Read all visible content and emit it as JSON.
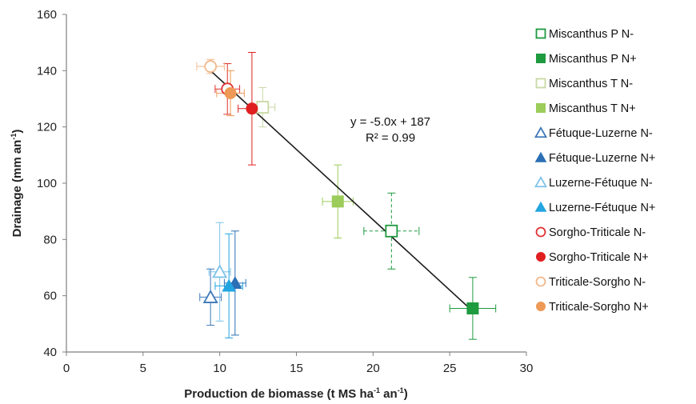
{
  "chart_data": {
    "type": "scatter",
    "xlabel_main": "Production de biomasse (t MS ha",
    "xlabel_sup1": "-1",
    "xlabel_mid": " an",
    "xlabel_sup2": "-1",
    "xlabel_end": ")",
    "ylabel_main": "Drainage (mm an",
    "ylabel_sup": "-1",
    "ylabel_end": ")",
    "xlim": [
      0,
      30
    ],
    "ylim": [
      40,
      160
    ],
    "x_ticks": [
      "0",
      "5",
      "10",
      "15",
      "20",
      "25",
      "30"
    ],
    "y_ticks": [
      "40",
      "60",
      "80",
      "100",
      "120",
      "140",
      "160"
    ],
    "grid": false,
    "legend_position": "right",
    "trendline": {
      "equation": "y = -5.0x + 187",
      "r2": "R² = 0.99",
      "x_range": [
        9.3,
        26.5
      ]
    },
    "series": [
      {
        "name": "Miscanthus P N-",
        "marker": "square",
        "fill": "none",
        "color": "#1e9a3f",
        "x": 21.2,
        "y": 83,
        "xerr": 1.8,
        "yerr": 13.5,
        "dashed": true
      },
      {
        "name": "Miscanthus P N+",
        "marker": "square",
        "fill": "solid",
        "color": "#1e9a3f",
        "x": 26.5,
        "y": 55.5,
        "xerr": 1.5,
        "yerr": 11,
        "dashed": false
      },
      {
        "name": "Miscanthus T N-",
        "marker": "square",
        "fill": "none",
        "color": "#c9d9a3",
        "x": 12.8,
        "y": 127,
        "xerr": 0.8,
        "yerr": 7,
        "dashed": false
      },
      {
        "name": "Miscanthus T N+",
        "marker": "square",
        "fill": "solid",
        "color": "#9ccc5a",
        "x": 17.7,
        "y": 93.5,
        "xerr": 1.0,
        "yerr": 13,
        "dashed": false
      },
      {
        "name": "Fétuque-Luzerne N-",
        "marker": "triangle",
        "fill": "none",
        "color": "#3d78b8",
        "x": 9.4,
        "y": 59.5,
        "xerr": 0.7,
        "yerr": 10,
        "dashed": false
      },
      {
        "name": "Fétuque-Luzerne N+",
        "marker": "triangle",
        "fill": "solid",
        "color": "#2b6fb5",
        "x": 11.0,
        "y": 64.5,
        "xerr": 0.7,
        "yerr": 18.5,
        "dashed": false
      },
      {
        "name": "Luzerne-Fétuque N-",
        "marker": "triangle",
        "fill": "none",
        "color": "#7ec3e8",
        "x": 10.0,
        "y": 68.5,
        "xerr": 0.7,
        "yerr": 17.5,
        "dashed": false
      },
      {
        "name": "Luzerne-Fétuque N+",
        "marker": "triangle",
        "fill": "solid",
        "color": "#22a5e0",
        "x": 10.6,
        "y": 63.5,
        "xerr": 0.9,
        "yerr": 18.5,
        "dashed": false
      },
      {
        "name": "Sorgho-Triticale N-",
        "marker": "circle",
        "fill": "none",
        "color": "#e03030",
        "x": 10.5,
        "y": 133.5,
        "xerr": 0.8,
        "yerr": 9,
        "dashed": false
      },
      {
        "name": "Sorgho-Triticale N+",
        "marker": "circle",
        "fill": "solid",
        "color": "#e02020",
        "x": 12.1,
        "y": 126.5,
        "xerr": 0.9,
        "yerr": 20,
        "dashed": false
      },
      {
        "name": "Triticale-Sorgho N-",
        "marker": "circle",
        "fill": "none",
        "color": "#f2b88a",
        "x": 9.4,
        "y": 141.5,
        "xerr": 0.9,
        "yerr": 2.5,
        "dashed": false
      },
      {
        "name": "Triticale-Sorgho N+",
        "marker": "circle",
        "fill": "solid",
        "color": "#ee9955",
        "x": 10.7,
        "y": 132,
        "xerr": 0.9,
        "yerr": 8,
        "dashed": false
      }
    ]
  }
}
